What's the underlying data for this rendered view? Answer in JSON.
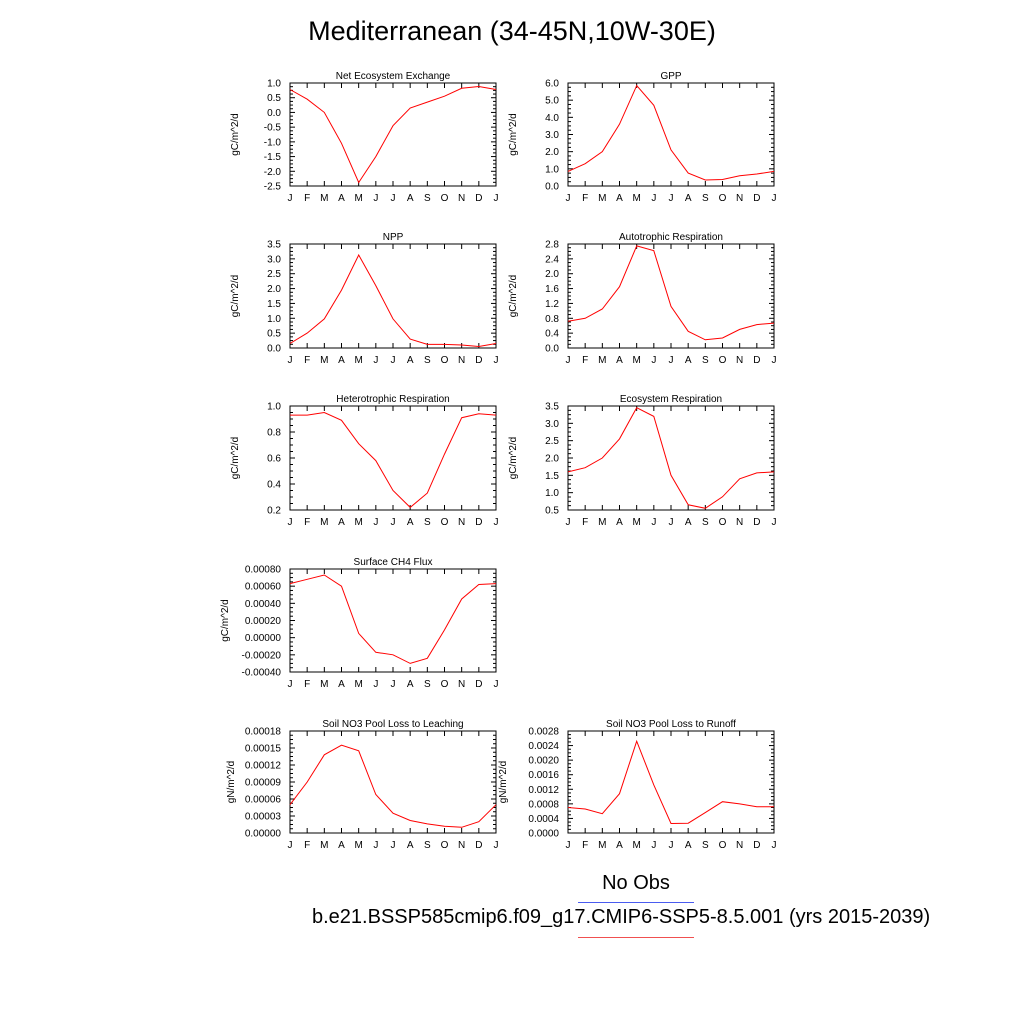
{
  "title": "Mediterranean (34-45N,10W-30E)",
  "legend": {
    "obs_label": "No Obs",
    "obs_color": "#4a5cf0",
    "case_label": "b.e21.BSSP585cmip6.f09_g17.CMIP6-SSP5-8.5.001 (yrs 2015-2039)",
    "case_color": "#f05050"
  },
  "chart_data": [
    {
      "type": "line",
      "title": "Net Ecosystem Exchange",
      "ylabel": "gC/m^2/d",
      "x": [
        "J",
        "F",
        "M",
        "A",
        "M",
        "J",
        "J",
        "A",
        "S",
        "O",
        "N",
        "D",
        "J"
      ],
      "ylim": [
        -2.5,
        1.0
      ],
      "yticks": [
        "1.0",
        "0.5",
        "0.0",
        "-0.5",
        "-1.0",
        "-1.5",
        "-2.0",
        "-2.5"
      ],
      "series": [
        {
          "color": "#ff0000",
          "values": [
            0.78,
            0.45,
            0.0,
            -1.05,
            -2.38,
            -1.5,
            -0.45,
            0.15,
            0.35,
            0.55,
            0.82,
            0.88,
            0.78
          ]
        }
      ]
    },
    {
      "type": "line",
      "title": "GPP",
      "ylabel": "gC/m^2/d",
      "x": [
        "J",
        "F",
        "M",
        "A",
        "M",
        "J",
        "J",
        "A",
        "S",
        "O",
        "N",
        "D",
        "J"
      ],
      "ylim": [
        0.0,
        6.0
      ],
      "yticks": [
        "6.0",
        "5.0",
        "4.0",
        "3.0",
        "2.0",
        "1.0",
        "0.0"
      ],
      "series": [
        {
          "color": "#ff0000",
          "values": [
            0.85,
            1.3,
            2.0,
            3.6,
            5.85,
            4.7,
            2.1,
            0.75,
            0.35,
            0.38,
            0.6,
            0.7,
            0.85
          ]
        }
      ]
    },
    {
      "type": "line",
      "title": "NPP",
      "ylabel": "gC/m^2/d",
      "x": [
        "J",
        "F",
        "M",
        "A",
        "M",
        "J",
        "J",
        "A",
        "S",
        "O",
        "N",
        "D",
        "J"
      ],
      "ylim": [
        0.0,
        3.5
      ],
      "yticks": [
        "3.5",
        "3.0",
        "2.5",
        "2.0",
        "1.5",
        "1.0",
        "0.5",
        "0.0"
      ],
      "series": [
        {
          "color": "#ff0000",
          "values": [
            0.15,
            0.5,
            0.98,
            1.95,
            3.13,
            2.1,
            0.98,
            0.3,
            0.12,
            0.12,
            0.1,
            0.05,
            0.15
          ]
        }
      ]
    },
    {
      "type": "line",
      "title": "Autotrophic Respiration",
      "ylabel": "gC/m^2/d",
      "x": [
        "J",
        "F",
        "M",
        "A",
        "M",
        "J",
        "J",
        "A",
        "S",
        "O",
        "N",
        "D",
        "J"
      ],
      "ylim": [
        0.0,
        2.8
      ],
      "yticks": [
        "2.8",
        "2.4",
        "2.0",
        "1.6",
        "1.2",
        "0.8",
        "0.4",
        "0.0"
      ],
      "series": [
        {
          "color": "#ff0000",
          "values": [
            0.72,
            0.8,
            1.05,
            1.65,
            2.75,
            2.62,
            1.12,
            0.45,
            0.22,
            0.27,
            0.5,
            0.63,
            0.67
          ]
        }
      ]
    },
    {
      "type": "line",
      "title": "Heterotrophic Respiration",
      "ylabel": "gC/m^2/d",
      "x": [
        "J",
        "F",
        "M",
        "A",
        "M",
        "J",
        "J",
        "A",
        "S",
        "O",
        "N",
        "D",
        "J"
      ],
      "ylim": [
        0.2,
        1.0
      ],
      "yticks": [
        "1.0",
        "0.8",
        "0.6",
        "0.4",
        "0.2"
      ],
      "series": [
        {
          "color": "#ff0000",
          "values": [
            0.93,
            0.93,
            0.95,
            0.89,
            0.71,
            0.58,
            0.35,
            0.22,
            0.33,
            0.63,
            0.91,
            0.94,
            0.93
          ]
        }
      ]
    },
    {
      "type": "line",
      "title": "Ecosystem Respiration",
      "ylabel": "gC/m^2/d",
      "x": [
        "J",
        "F",
        "M",
        "A",
        "M",
        "J",
        "J",
        "A",
        "S",
        "O",
        "N",
        "D",
        "J"
      ],
      "ylim": [
        0.5,
        3.5
      ],
      "yticks": [
        "3.5",
        "3.0",
        "2.5",
        "2.0",
        "1.5",
        "1.0",
        "0.5"
      ],
      "series": [
        {
          "color": "#ff0000",
          "values": [
            1.6,
            1.72,
            2.0,
            2.55,
            3.45,
            3.2,
            1.5,
            0.65,
            0.55,
            0.88,
            1.4,
            1.57,
            1.6
          ]
        }
      ]
    },
    {
      "type": "line",
      "title": "Surface CH4 Flux",
      "ylabel": "gC/m^2/d",
      "x": [
        "J",
        "F",
        "M",
        "A",
        "M",
        "J",
        "J",
        "A",
        "S",
        "O",
        "N",
        "D",
        "J"
      ],
      "ylim": [
        -0.0004,
        0.0008
      ],
      "yticks": [
        "0.00080",
        "0.00060",
        "0.00040",
        "0.00020",
        "0.00000",
        "-0.00020",
        "-0.00040"
      ],
      "series": [
        {
          "color": "#ff0000",
          "values": [
            0.00063,
            0.00068,
            0.00073,
            0.0006,
            5e-05,
            -0.00017,
            -0.0002,
            -0.0003,
            -0.00024,
            9e-05,
            0.00045,
            0.00062,
            0.00063
          ]
        }
      ]
    },
    {
      "type": "line",
      "title": "Soil NO3 Pool Loss to Leaching",
      "ylabel": "gN/m^2/d",
      "x": [
        "J",
        "F",
        "M",
        "A",
        "M",
        "J",
        "J",
        "A",
        "S",
        "O",
        "N",
        "D",
        "J"
      ],
      "ylim": [
        0.0,
        0.00018
      ],
      "yticks": [
        "0.00018",
        "0.00015",
        "0.00012",
        "0.00009",
        "0.00006",
        "0.00003",
        "0.00000"
      ],
      "series": [
        {
          "color": "#ff0000",
          "values": [
            5e-05,
            9e-05,
            0.000138,
            0.000155,
            0.000145,
            6.8e-05,
            3.5e-05,
            2.2e-05,
            1.6e-05,
            1.2e-05,
            1e-05,
            2e-05,
            5e-05
          ]
        }
      ]
    },
    {
      "type": "line",
      "title": "Soil NO3 Pool Loss to Runoff",
      "ylabel": "gN/m^2/d",
      "x": [
        "J",
        "F",
        "M",
        "A",
        "M",
        "J",
        "J",
        "A",
        "S",
        "O",
        "N",
        "D",
        "J"
      ],
      "ylim": [
        0.0,
        0.0028
      ],
      "yticks": [
        "0.0028",
        "0.0024",
        "0.0020",
        "0.0016",
        "0.0012",
        "0.0008",
        "0.0004",
        "0.0000"
      ],
      "series": [
        {
          "color": "#ff0000",
          "values": [
            0.0007,
            0.00066,
            0.00053,
            0.00108,
            0.00252,
            0.00132,
            0.00026,
            0.00027,
            0.00056,
            0.00086,
            0.0008,
            0.00072,
            0.00072
          ]
        }
      ]
    }
  ]
}
